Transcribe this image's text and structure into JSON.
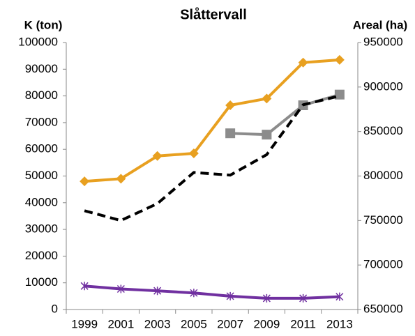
{
  "chart_data": {
    "type": "line",
    "title": "Slåttervall",
    "y_label": "K (ton)",
    "y2_label": "Areal (ha)",
    "categories": [
      "1999",
      "2001",
      "2003",
      "2005",
      "2007",
      "2009",
      "2011",
      "2013"
    ],
    "series": [
      {
        "color": "#e8a020",
        "marker": "diamond",
        "line_style": "solid",
        "values": [
          48000,
          49000,
          57500,
          58500,
          76500,
          79000,
          92500,
          93500
        ]
      },
      {
        "color": "#8c8c8c",
        "marker": "square",
        "line_style": "solid",
        "values": [
          null,
          null,
          null,
          null,
          66000,
          65500,
          76500,
          80500
        ]
      },
      {
        "color": "#000000",
        "marker": "none",
        "line_style": "dashed",
        "axis": "y2",
        "values": [
          761000,
          750000,
          769000,
          804000,
          801000,
          824000,
          880000,
          890000
        ]
      },
      {
        "color": "#7030a0",
        "marker": "star",
        "line_style": "solid",
        "values": [
          8800,
          7700,
          7000,
          6200,
          5000,
          4200,
          4200,
          4800
        ]
      }
    ],
    "ylim": [
      0,
      100000
    ],
    "yticks": [
      0,
      10000,
      20000,
      30000,
      40000,
      50000,
      60000,
      70000,
      80000,
      90000,
      100000
    ],
    "y2lim": [
      650000,
      950000
    ],
    "y2ticks": [
      650000,
      700000,
      750000,
      800000,
      850000,
      900000,
      950000
    ],
    "grid": false
  }
}
